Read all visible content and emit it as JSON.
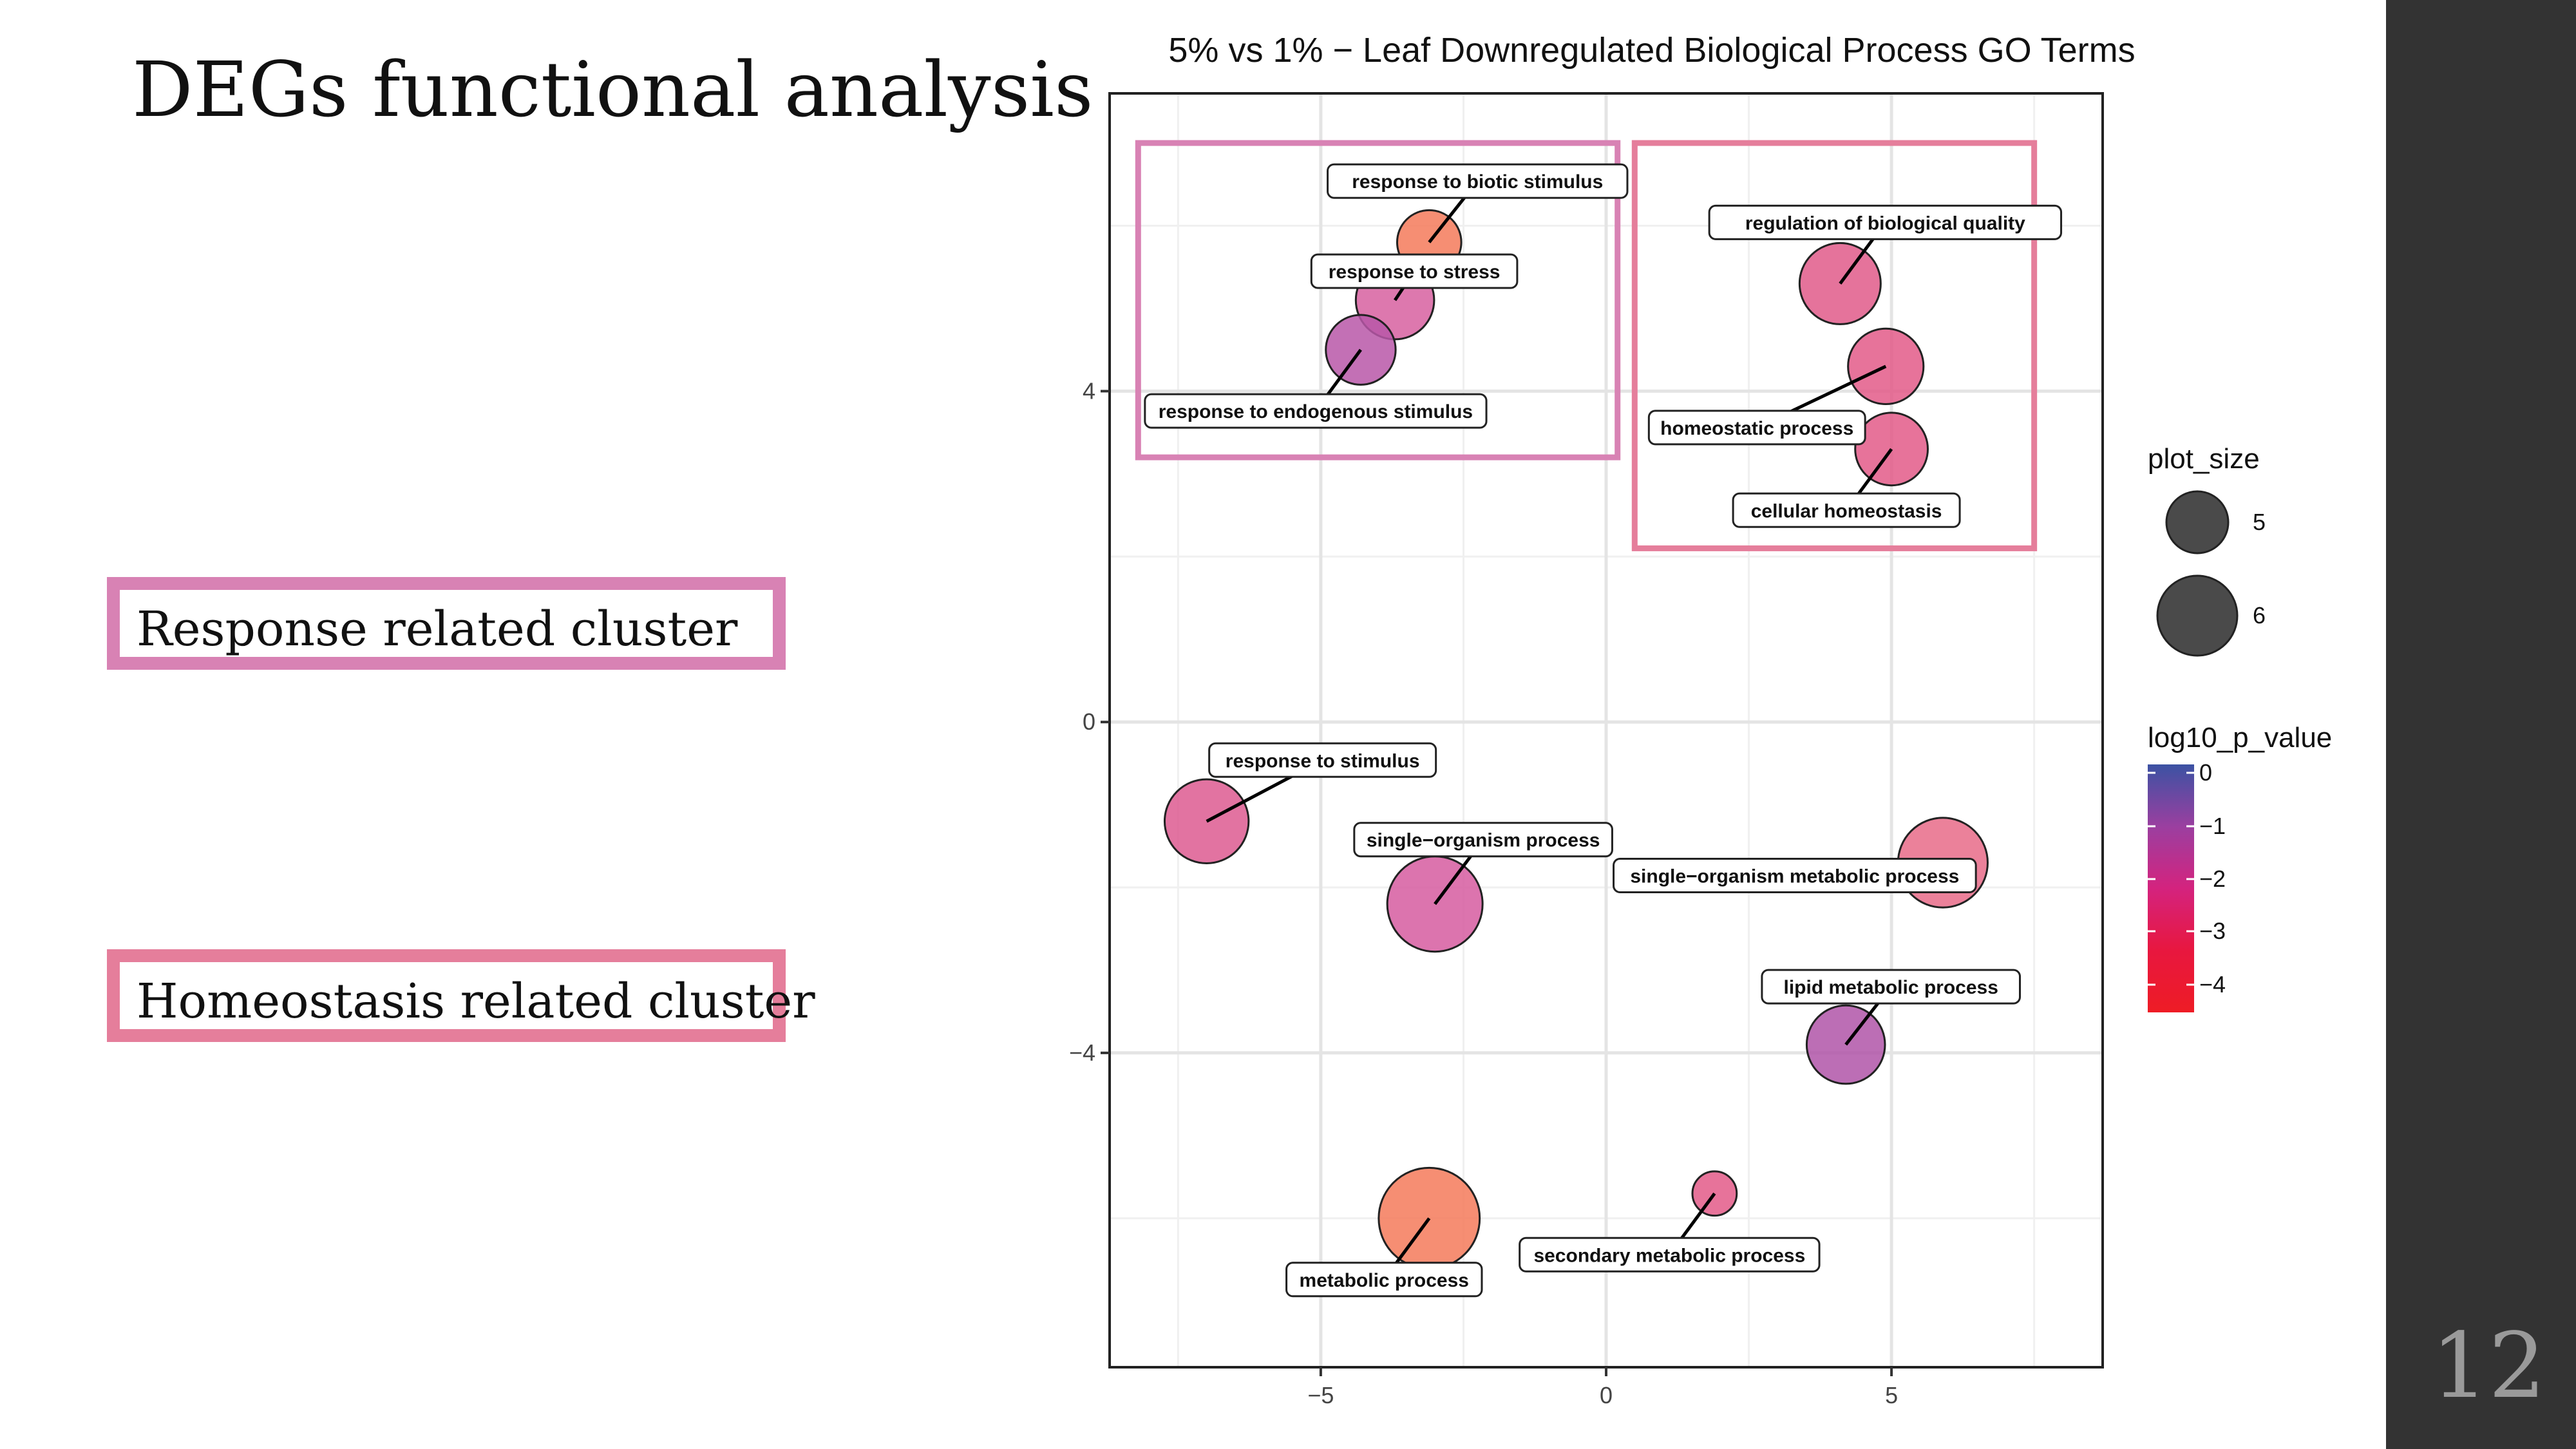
{
  "slide": {
    "title": "DEGs functional analysis",
    "page_number": "12",
    "sidebar_color": "#333333"
  },
  "clusters": [
    {
      "label": "Response related cluster",
      "color": "#d882b4"
    },
    {
      "label": "Homeostasis related cluster",
      "color": "#e57e9b"
    }
  ],
  "chart_data": {
    "type": "scatter",
    "title": "5% vs 1% − Leaf Downregulated Biological Process GO Terms",
    "xlabel": "",
    "ylabel": "",
    "xlim": [
      -8.7,
      8.7
    ],
    "ylim": [
      -7.8,
      7.6
    ],
    "xticks": [
      "−5",
      "0",
      "5"
    ],
    "yticks": [
      "4",
      "0",
      "−4"
    ],
    "grid": true,
    "points": [
      {
        "label": "response to biotic stimulus",
        "x": -3.1,
        "y": 5.8,
        "plot_size": 4.9,
        "color": "#f47a5a"
      },
      {
        "label": "response to stress",
        "x": -3.7,
        "y": 5.1,
        "plot_size": 5.4,
        "color": "#d760a0"
      },
      {
        "label": "response to endogenous stimulus",
        "x": -4.3,
        "y": 4.5,
        "plot_size": 5.1,
        "color": "#b957a8"
      },
      {
        "label": "regulation of biological quality",
        "x": 4.1,
        "y": 5.3,
        "plot_size": 5.5,
        "color": "#e15a8a"
      },
      {
        "label": "homeostatic process",
        "x": 4.9,
        "y": 4.3,
        "plot_size": 5.3,
        "color": "#e35a88"
      },
      {
        "label": "cellular homeostasis",
        "x": 5.0,
        "y": 3.3,
        "plot_size": 5.2,
        "color": "#e35a88"
      },
      {
        "label": "response to stimulus",
        "x": -7.0,
        "y": -1.2,
        "plot_size": 5.6,
        "color": "#dd5b91"
      },
      {
        "label": "single−organism process",
        "x": -3.0,
        "y": -2.2,
        "plot_size": 6.0,
        "color": "#d65ca0"
      },
      {
        "label": "single−organism metabolic process",
        "x": 5.9,
        "y": -1.7,
        "plot_size": 5.8,
        "color": "#e86b88"
      },
      {
        "label": "lipid metabolic process",
        "x": 4.2,
        "y": -3.9,
        "plot_size": 5.4,
        "color": "#b055a8"
      },
      {
        "label": "secondary metabolic process",
        "x": 1.9,
        "y": -5.7,
        "plot_size": 4.2,
        "color": "#e35a88"
      },
      {
        "label": "metabolic process",
        "x": -3.1,
        "y": -6.0,
        "plot_size": 6.2,
        "color": "#f47a5a"
      }
    ],
    "legend_size": {
      "title": "plot_size",
      "items": [
        "5",
        "6"
      ],
      "placement": "right"
    },
    "legend_color": {
      "title": "log10_p_value",
      "ticks": [
        "0",
        "−1",
        "−2",
        "−3",
        "−4"
      ],
      "placement": "right",
      "scale_colors": [
        "#3b52a3",
        "#9b3fa0",
        "#d4237e",
        "#e8173f",
        "#ee1c25"
      ]
    },
    "cluster_boxes": [
      {
        "x": [
          -8.2,
          0.2
        ],
        "y": [
          3.2,
          7.0
        ],
        "color": "#d882b4"
      },
      {
        "x": [
          0.5,
          7.5
        ],
        "y": [
          2.1,
          7.0
        ],
        "color": "#e57e9b"
      }
    ]
  }
}
